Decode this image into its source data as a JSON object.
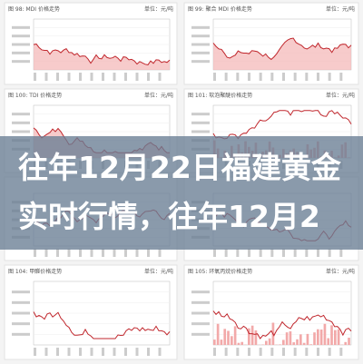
{
  "panels": [
    {
      "title": "图 98: MDI 价格走势",
      "unit": "单位：元/吨"
    },
    {
      "title": "图 99: 聚合 MDI 价格走势",
      "unit": "单位：元/吨"
    },
    {
      "title": "图 100: TDI 价格走势",
      "unit": "单位：元/吨"
    },
    {
      "title": "图 101: 软泡聚醚价格走势",
      "unit": "单位：元/吨"
    },
    {
      "title": "图 104: 甲醛价格走势",
      "unit": "单位：元/吨"
    },
    {
      "title": "图 105: 环氧丙烷价格走势",
      "unit": "单位：元/吨"
    }
  ],
  "overlay": {
    "line1": "往年12月22日福建黄金",
    "line2": "实时行情，往年12月2"
  }
}
